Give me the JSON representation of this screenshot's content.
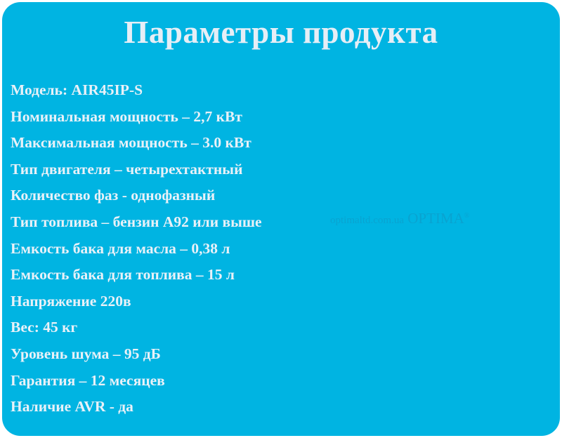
{
  "title": "Параметры продукта",
  "specs": [
    "Модель: AIR45IP-S",
    "Номинальная мощность – 2,7 кВт",
    "Максимальная мощность – 3.0 кВт",
    "Тип двигателя – четырехтактный",
    "Количество фаз - однофазный",
    "Тип топлива – бензин А92 или выше",
    "Емкость бака для масла – 0,38 л",
    "Емкость бака для топлива – 15 л",
    "Напряжение 220в",
    "Вес: 45 кг",
    "Уровень шума – 95 дБ",
    "Гарантия – 12 месяцев",
    "Наличие AVR - да"
  ],
  "watermark": {
    "site": "optimaltd.com.ua",
    "brand": "OPTIMA",
    "mark": "®"
  },
  "colors": {
    "background": "#00b4e2",
    "text": "#e9f1f8"
  }
}
